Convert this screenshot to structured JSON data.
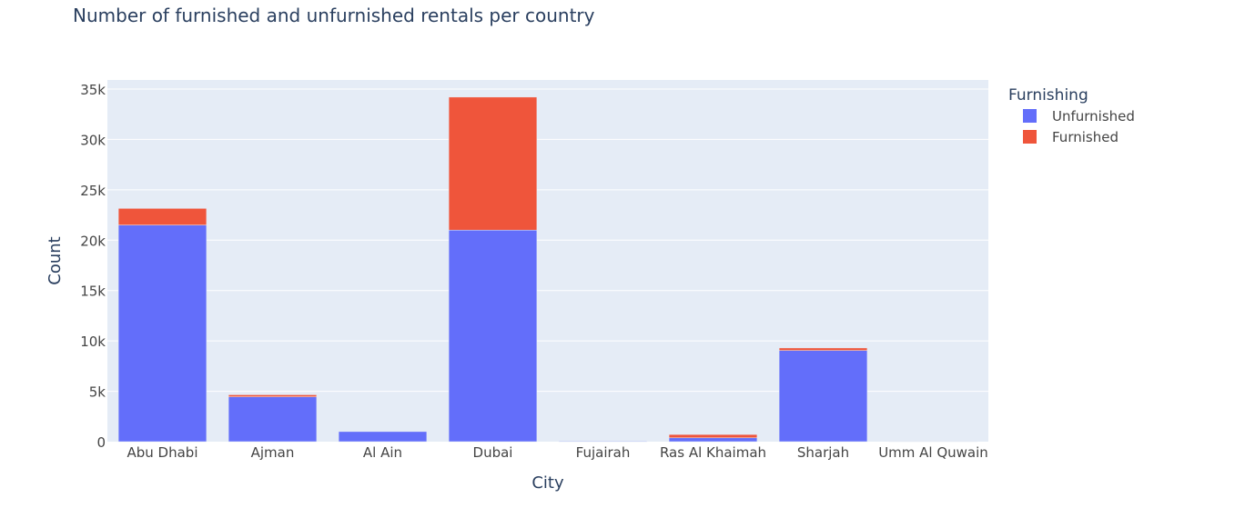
{
  "chart_data": {
    "type": "bar",
    "barmode": "stack",
    "title": "Number of furnished and unfurnished rentals per country",
    "xlabel": "City",
    "ylabel": "Count",
    "categories": [
      "Abu Dhabi",
      "Ajman",
      "Al Ain",
      "Dubai",
      "Fujairah",
      "Ras Al Khaimah",
      "Sharjah",
      "Umm Al Quwain"
    ],
    "series": [
      {
        "name": "Unfurnished",
        "color": "#636efa",
        "values": [
          21500,
          4450,
          1000,
          21000,
          60,
          380,
          9050,
          40
        ]
      },
      {
        "name": "Furnished",
        "color": "#ef553b",
        "values": [
          1650,
          200,
          0,
          13200,
          5,
          330,
          250,
          3
        ]
      }
    ],
    "ylim": [
      0,
      35000
    ],
    "yticks": [
      0,
      5000,
      10000,
      15000,
      20000,
      25000,
      30000,
      35000
    ],
    "ytick_labels": [
      "0",
      "5k",
      "10k",
      "15k",
      "20k",
      "25k",
      "30k",
      "35k"
    ],
    "legend": {
      "title": "Furnishing",
      "placement": "top-right"
    },
    "grid": true,
    "colors": {
      "plot_background": "#e5ecf6",
      "grid": "#ffffff",
      "text": "#2a3f5f",
      "axis_text": "#444444"
    }
  }
}
